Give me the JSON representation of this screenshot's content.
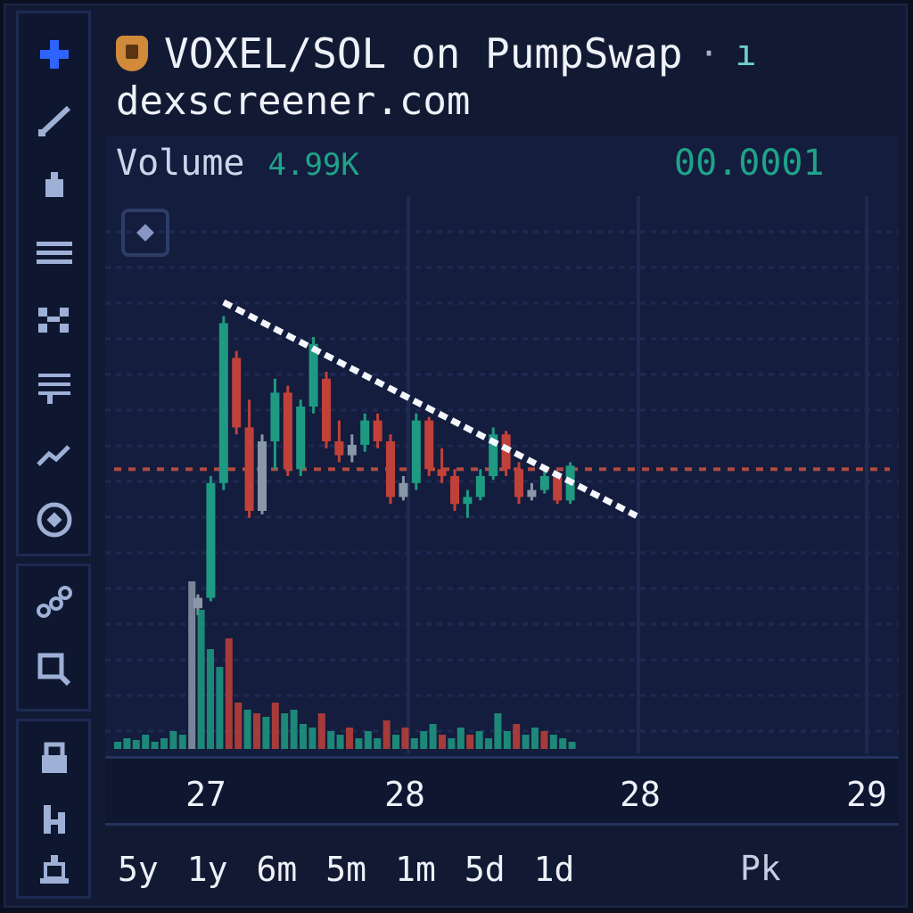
{
  "header": {
    "title": "VOXEL/SOL on PumpSwap",
    "separator": "·",
    "badge": "ı",
    "url": "dexscreener.com"
  },
  "indicators": {
    "volume_label": "Volume",
    "volume_value": "4.99K",
    "price_value": "00.0001"
  },
  "sidebar": {
    "icons": [
      "crosshair-icon",
      "trendline-icon",
      "brush-icon",
      "horizontal-lines-icon",
      "pattern-icon",
      "fib-retracement-icon",
      "measure-icon",
      "target-icon",
      "nodes-icon",
      "zoom-icon",
      "lock-icon",
      "magnet-icon",
      "trash-icon"
    ]
  },
  "timeframes": [
    "5y",
    "1y",
    "6m",
    "5m",
    "1m",
    "5d",
    "1d"
  ],
  "timeframe_extra": "Pk",
  "colors": {
    "up": "#1f9a82",
    "down": "#c0413a",
    "neutral": "#8a97a8",
    "trendline": "#f4f6fb",
    "priceline": "#b24a3f",
    "grid": "#1f2a52"
  },
  "chart_data": {
    "type": "candlestick",
    "x_ticks": [
      "27",
      "28",
      "28",
      "29"
    ],
    "reference_price_level": 0.42,
    "candles": [
      {
        "o": 0.02,
        "h": 0.06,
        "l": 0.0,
        "c": 0.05,
        "dir": "neutral"
      },
      {
        "o": 0.05,
        "h": 0.4,
        "l": 0.04,
        "c": 0.38,
        "dir": "up"
      },
      {
        "o": 0.38,
        "h": 0.86,
        "l": 0.36,
        "c": 0.84,
        "dir": "up"
      },
      {
        "o": 0.74,
        "h": 0.76,
        "l": 0.52,
        "c": 0.54,
        "dir": "down"
      },
      {
        "o": 0.54,
        "h": 0.62,
        "l": 0.28,
        "c": 0.3,
        "dir": "down"
      },
      {
        "o": 0.3,
        "h": 0.52,
        "l": 0.29,
        "c": 0.5,
        "dir": "neutral"
      },
      {
        "o": 0.5,
        "h": 0.68,
        "l": 0.42,
        "c": 0.64,
        "dir": "up"
      },
      {
        "o": 0.64,
        "h": 0.66,
        "l": 0.4,
        "c": 0.42,
        "dir": "down"
      },
      {
        "o": 0.42,
        "h": 0.62,
        "l": 0.4,
        "c": 0.6,
        "dir": "up"
      },
      {
        "o": 0.6,
        "h": 0.8,
        "l": 0.58,
        "c": 0.78,
        "dir": "up"
      },
      {
        "o": 0.68,
        "h": 0.7,
        "l": 0.48,
        "c": 0.5,
        "dir": "down"
      },
      {
        "o": 0.5,
        "h": 0.56,
        "l": 0.44,
        "c": 0.46,
        "dir": "down"
      },
      {
        "o": 0.46,
        "h": 0.52,
        "l": 0.44,
        "c": 0.49,
        "dir": "neutral"
      },
      {
        "o": 0.49,
        "h": 0.58,
        "l": 0.47,
        "c": 0.56,
        "dir": "up"
      },
      {
        "o": 0.56,
        "h": 0.58,
        "l": 0.48,
        "c": 0.5,
        "dir": "down"
      },
      {
        "o": 0.5,
        "h": 0.52,
        "l": 0.32,
        "c": 0.34,
        "dir": "down"
      },
      {
        "o": 0.34,
        "h": 0.4,
        "l": 0.33,
        "c": 0.38,
        "dir": "neutral"
      },
      {
        "o": 0.38,
        "h": 0.58,
        "l": 0.36,
        "c": 0.56,
        "dir": "up"
      },
      {
        "o": 0.56,
        "h": 0.57,
        "l": 0.4,
        "c": 0.42,
        "dir": "down"
      },
      {
        "o": 0.42,
        "h": 0.48,
        "l": 0.38,
        "c": 0.4,
        "dir": "down"
      },
      {
        "o": 0.4,
        "h": 0.42,
        "l": 0.3,
        "c": 0.32,
        "dir": "down"
      },
      {
        "o": 0.32,
        "h": 0.36,
        "l": 0.28,
        "c": 0.34,
        "dir": "up"
      },
      {
        "o": 0.34,
        "h": 0.42,
        "l": 0.33,
        "c": 0.4,
        "dir": "up"
      },
      {
        "o": 0.4,
        "h": 0.54,
        "l": 0.39,
        "c": 0.52,
        "dir": "up"
      },
      {
        "o": 0.52,
        "h": 0.53,
        "l": 0.4,
        "c": 0.42,
        "dir": "down"
      },
      {
        "o": 0.42,
        "h": 0.44,
        "l": 0.32,
        "c": 0.34,
        "dir": "down"
      },
      {
        "o": 0.34,
        "h": 0.38,
        "l": 0.33,
        "c": 0.36,
        "dir": "neutral"
      },
      {
        "o": 0.36,
        "h": 0.42,
        "l": 0.35,
        "c": 0.4,
        "dir": "up"
      },
      {
        "o": 0.4,
        "h": 0.41,
        "l": 0.32,
        "c": 0.33,
        "dir": "down"
      },
      {
        "o": 0.33,
        "h": 0.44,
        "l": 0.32,
        "c": 0.43,
        "dir": "up"
      }
    ],
    "volumes": [
      {
        "v": 0.04,
        "dir": "up"
      },
      {
        "v": 0.06,
        "dir": "up"
      },
      {
        "v": 0.05,
        "dir": "up"
      },
      {
        "v": 0.08,
        "dir": "up"
      },
      {
        "v": 0.04,
        "dir": "up"
      },
      {
        "v": 0.06,
        "dir": "up"
      },
      {
        "v": 0.1,
        "dir": "up"
      },
      {
        "v": 0.08,
        "dir": "up"
      },
      {
        "v": 0.94,
        "dir": "neutral"
      },
      {
        "v": 0.78,
        "dir": "up"
      },
      {
        "v": 0.56,
        "dir": "up"
      },
      {
        "v": 0.46,
        "dir": "up"
      },
      {
        "v": 0.62,
        "dir": "down"
      },
      {
        "v": 0.26,
        "dir": "down"
      },
      {
        "v": 0.22,
        "dir": "up"
      },
      {
        "v": 0.2,
        "dir": "down"
      },
      {
        "v": 0.18,
        "dir": "up"
      },
      {
        "v": 0.26,
        "dir": "down"
      },
      {
        "v": 0.2,
        "dir": "up"
      },
      {
        "v": 0.22,
        "dir": "up"
      },
      {
        "v": 0.14,
        "dir": "up"
      },
      {
        "v": 0.12,
        "dir": "up"
      },
      {
        "v": 0.2,
        "dir": "down"
      },
      {
        "v": 0.1,
        "dir": "up"
      },
      {
        "v": 0.08,
        "dir": "up"
      },
      {
        "v": 0.12,
        "dir": "down"
      },
      {
        "v": 0.06,
        "dir": "up"
      },
      {
        "v": 0.1,
        "dir": "up"
      },
      {
        "v": 0.06,
        "dir": "up"
      },
      {
        "v": 0.16,
        "dir": "down"
      },
      {
        "v": 0.08,
        "dir": "up"
      },
      {
        "v": 0.12,
        "dir": "down"
      },
      {
        "v": 0.06,
        "dir": "up"
      },
      {
        "v": 0.1,
        "dir": "up"
      },
      {
        "v": 0.14,
        "dir": "up"
      },
      {
        "v": 0.08,
        "dir": "down"
      },
      {
        "v": 0.06,
        "dir": "up"
      },
      {
        "v": 0.12,
        "dir": "up"
      },
      {
        "v": 0.08,
        "dir": "down"
      },
      {
        "v": 0.1,
        "dir": "up"
      },
      {
        "v": 0.06,
        "dir": "up"
      },
      {
        "v": 0.2,
        "dir": "up"
      },
      {
        "v": 0.1,
        "dir": "up"
      },
      {
        "v": 0.14,
        "dir": "down"
      },
      {
        "v": 0.08,
        "dir": "up"
      },
      {
        "v": 0.12,
        "dir": "up"
      },
      {
        "v": 0.1,
        "dir": "down"
      },
      {
        "v": 0.08,
        "dir": "up"
      },
      {
        "v": 0.06,
        "dir": "up"
      },
      {
        "v": 0.04,
        "dir": "up"
      }
    ],
    "trendline": {
      "from": {
        "candle": 2,
        "value": 0.9
      },
      "to": {
        "candle": 30,
        "value": 0.26
      }
    }
  }
}
